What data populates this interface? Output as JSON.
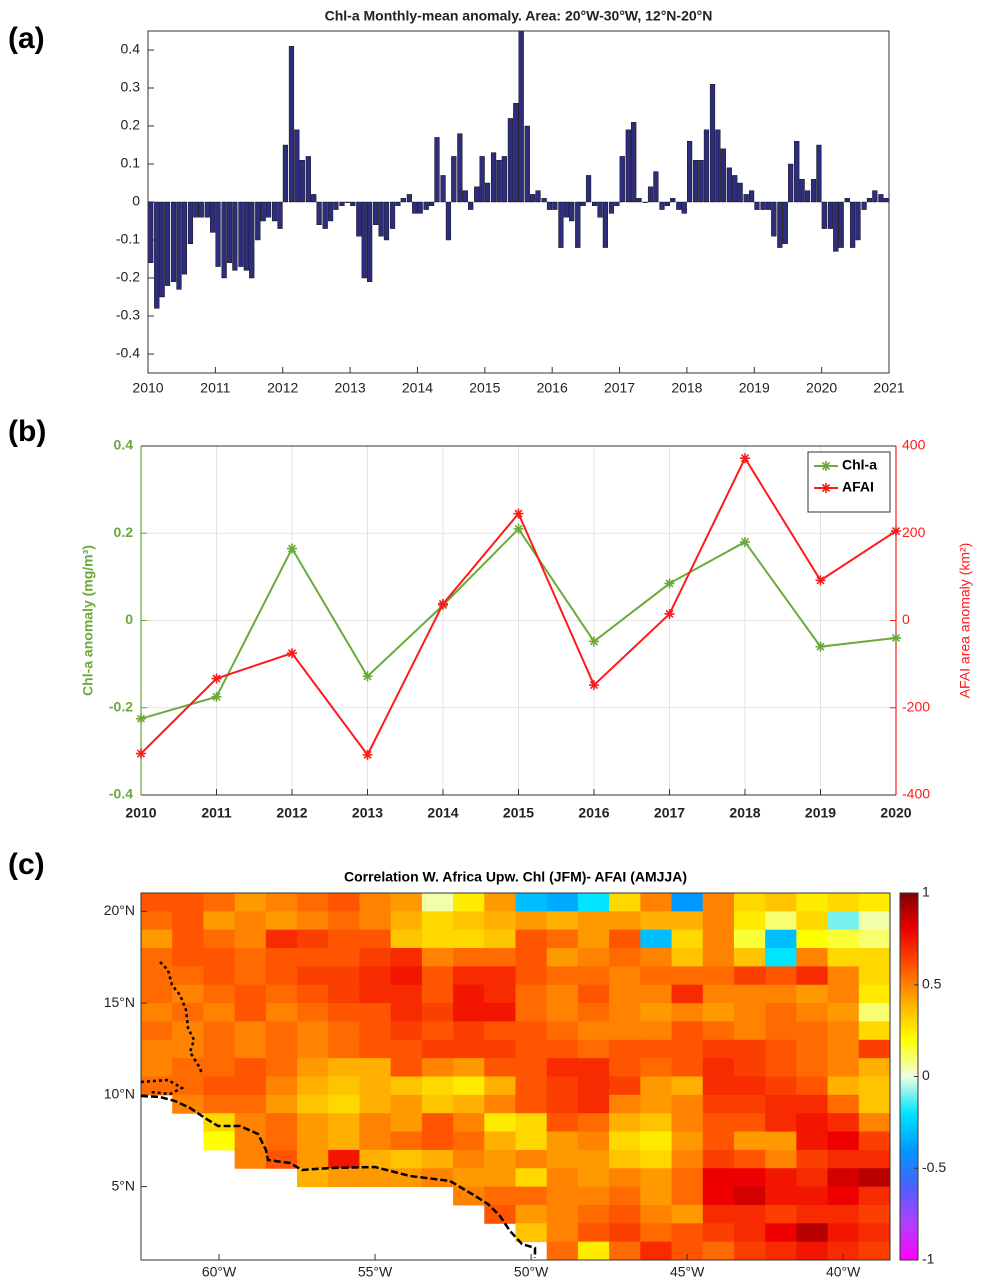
{
  "chart_data": [
    {
      "panel": "(a)",
      "type": "bar",
      "title": "Chl-a Monthly-mean anomaly. Area: 20°W-30°W, 12°N-20°N",
      "color": "#2e2d7a",
      "xlim": [
        2010,
        2021
      ],
      "xticks": [
        2010,
        2011,
        2012,
        2013,
        2014,
        2015,
        2016,
        2017,
        2018,
        2019,
        2020,
        2021
      ],
      "ylim": [
        -0.45,
        0.45
      ],
      "yticks": [
        -0.4,
        -0.3,
        -0.2,
        -0.1,
        0,
        0.1,
        0.2,
        0.3,
        0.4
      ],
      "grid": false,
      "x": [
        2010.04,
        2010.13,
        2010.21,
        2010.29,
        2010.38,
        2010.46,
        2010.54,
        2010.63,
        2010.71,
        2010.79,
        2010.88,
        2010.96,
        2011.04,
        2011.13,
        2011.21,
        2011.29,
        2011.38,
        2011.46,
        2011.54,
        2011.63,
        2011.71,
        2011.79,
        2011.88,
        2011.96,
        2012.04,
        2012.13,
        2012.21,
        2012.29,
        2012.38,
        2012.46,
        2012.54,
        2012.63,
        2012.71,
        2012.79,
        2012.88,
        2012.96,
        2013.04,
        2013.13,
        2013.21,
        2013.29,
        2013.38,
        2013.46,
        2013.54,
        2013.63,
        2013.71,
        2013.79,
        2013.88,
        2013.96,
        2014.04,
        2014.13,
        2014.21,
        2014.29,
        2014.38,
        2014.46,
        2014.54,
        2014.63,
        2014.71,
        2014.79,
        2014.88,
        2014.96,
        2015.04,
        2015.13,
        2015.21,
        2015.29,
        2015.38,
        2015.46,
        2015.54,
        2015.63,
        2015.71,
        2015.79,
        2015.88,
        2015.96,
        2016.04,
        2016.13,
        2016.21,
        2016.29,
        2016.38,
        2016.46,
        2016.54,
        2016.63,
        2016.71,
        2016.79,
        2016.88,
        2016.96,
        2017.04,
        2017.13,
        2017.21,
        2017.29,
        2017.38,
        2017.46,
        2017.54,
        2017.63,
        2017.71,
        2017.79,
        2017.88,
        2017.96,
        2018.04,
        2018.13,
        2018.21,
        2018.29,
        2018.38,
        2018.46,
        2018.54,
        2018.63,
        2018.71,
        2018.79,
        2018.88,
        2018.96,
        2019.04,
        2019.13,
        2019.21,
        2019.29,
        2019.38,
        2019.46,
        2019.54,
        2019.63,
        2019.71,
        2019.79,
        2019.88,
        2019.96,
        2020.04,
        2020.13,
        2020.21,
        2020.29,
        2020.38,
        2020.46,
        2020.54,
        2020.63,
        2020.71,
        2020.79,
        2020.88,
        2020.96
      ],
      "values": [
        -0.16,
        -0.28,
        -0.25,
        -0.22,
        -0.21,
        -0.23,
        -0.19,
        -0.11,
        -0.04,
        -0.04,
        -0.04,
        -0.08,
        -0.17,
        -0.2,
        -0.16,
        -0.18,
        -0.17,
        -0.18,
        -0.2,
        -0.1,
        -0.05,
        -0.04,
        -0.05,
        -0.07,
        0.15,
        0.41,
        0.19,
        0.11,
        0.12,
        0.02,
        -0.06,
        -0.07,
        -0.05,
        -0.02,
        -0.01,
        0.0,
        -0.01,
        -0.09,
        -0.2,
        -0.21,
        -0.06,
        -0.09,
        -0.1,
        -0.07,
        -0.01,
        0.01,
        0.02,
        -0.03,
        -0.03,
        -0.02,
        -0.01,
        0.17,
        0.07,
        -0.1,
        0.12,
        0.18,
        0.03,
        -0.02,
        0.04,
        0.12,
        0.05,
        0.13,
        0.11,
        0.12,
        0.22,
        0.26,
        0.45,
        0.2,
        0.02,
        0.03,
        0.01,
        -0.02,
        -0.02,
        -0.12,
        -0.04,
        -0.05,
        -0.12,
        -0.01,
        0.07,
        -0.01,
        -0.04,
        -0.12,
        -0.03,
        -0.01,
        0.12,
        0.19,
        0.21,
        0.01,
        0.0,
        0.04,
        0.08,
        -0.02,
        -0.01,
        0.01,
        -0.02,
        -0.03,
        0.16,
        0.11,
        0.11,
        0.19,
        0.31,
        0.19,
        0.14,
        0.09,
        0.07,
        0.05,
        0.02,
        0.03,
        -0.02,
        -0.02,
        -0.02,
        -0.09,
        -0.12,
        -0.11,
        0.1,
        0.16,
        0.06,
        0.03,
        0.06,
        0.15,
        -0.07,
        -0.07,
        -0.13,
        -0.12,
        0.01,
        -0.12,
        -0.1,
        -0.02,
        0.01,
        0.03,
        0.02,
        0.01
      ]
    },
    {
      "panel": "(b)",
      "type": "line",
      "ylabel": "Chl-a anomaly (mg/m³)",
      "y2label": "AFAI area anomaly (km²)",
      "xlim": [
        2010,
        2020
      ],
      "xticks": [
        2010,
        2011,
        2012,
        2013,
        2014,
        2015,
        2016,
        2017,
        2018,
        2019,
        2020
      ],
      "ylim": [
        -0.4,
        0.4
      ],
      "yticks": [
        -0.4,
        -0.2,
        0,
        0.2,
        0.4
      ],
      "y2lim": [
        -400,
        400
      ],
      "y2ticks": [
        -400,
        -200,
        0,
        200,
        400
      ],
      "grid": true,
      "legend": "northeast",
      "x": [
        2010,
        2011,
        2012,
        2013,
        2014,
        2015,
        2016,
        2017,
        2018,
        2019,
        2020
      ],
      "series": [
        {
          "name": "Chl-a",
          "color": "#6aaa3a",
          "values": [
            -0.225,
            -0.175,
            0.165,
            -0.128,
            0.035,
            0.21,
            -0.048,
            0.085,
            0.18,
            -0.06,
            -0.04
          ]
        },
        {
          "name": "AFAI",
          "color": "#ff1a1a",
          "axis": "y2",
          "values": [
            -305,
            -133,
            -75,
            -308,
            38,
            245,
            -148,
            15,
            372,
            92,
            205
          ]
        }
      ]
    },
    {
      "panel": "(c)",
      "type": "heatmap",
      "title": "Correlation W. Africa Upw. Chl (JFM)- AFAI (AMJJA)",
      "xlim": [
        -62.5,
        -38.5
      ],
      "ylim": [
        1,
        21
      ],
      "xticks": [
        {
          "value": -60,
          "label": "60°W"
        },
        {
          "value": -55,
          "label": "55°W"
        },
        {
          "value": -50,
          "label": "50°W"
        },
        {
          "value": -45,
          "label": "45°W"
        },
        {
          "value": -40,
          "label": "40°W"
        }
      ],
      "yticks": [
        {
          "value": 20,
          "label": "20°N"
        },
        {
          "value": 15,
          "label": "15°N"
        },
        {
          "value": 10,
          "label": "10°N"
        },
        {
          "value": 5,
          "label": "5°N"
        }
      ],
      "clim": [
        -1,
        1
      ],
      "cticks": [
        1,
        0.5,
        0,
        -0.5,
        -1
      ],
      "colormap": [
        "#ff00ff",
        "#b040ff",
        "#4a60ff",
        "#0098ff",
        "#00e4ff",
        "#eeffe0",
        "#ffff00",
        "#ffb000",
        "#ff5400",
        "#ee0000",
        "#800000"
      ],
      "x": [
        -62,
        -61,
        -60,
        -59,
        -58,
        -57,
        -56,
        -55,
        -54,
        -53,
        -52,
        -51,
        -50,
        -49,
        -48,
        -47,
        -46,
        -45,
        -44,
        -43,
        -42,
        -41,
        -40,
        -39
      ],
      "y": [
        20.5,
        19.5,
        18.5,
        17.5,
        16.5,
        15.5,
        14.5,
        13.5,
        12.5,
        11.5,
        10.5,
        9.5,
        8.5,
        7.5,
        6.5,
        5.5,
        4.5,
        3.5,
        2.5,
        1.5
      ],
      "values": [
        [
          0.6,
          0.6,
          0.55,
          0.45,
          0.5,
          0.55,
          0.6,
          0.5,
          0.45,
          0.05,
          0.25,
          0.45,
          -0.3,
          -0.35,
          -0.2,
          0.3,
          0.5,
          -0.4,
          0.5,
          0.3,
          0.35,
          0.25,
          0.3,
          0.25
        ],
        [
          0.55,
          0.6,
          0.45,
          0.5,
          0.45,
          0.5,
          0.55,
          0.5,
          0.4,
          0.3,
          0.35,
          0.4,
          0.45,
          0.4,
          0.45,
          0.45,
          0.4,
          0.4,
          0.5,
          0.25,
          0.1,
          0.3,
          -0.1,
          0.05
        ],
        [
          0.45,
          0.6,
          0.55,
          0.5,
          0.7,
          0.65,
          0.6,
          0.6,
          0.35,
          0.3,
          0.3,
          0.35,
          0.6,
          0.55,
          0.45,
          0.6,
          -0.3,
          0.3,
          0.5,
          0.15,
          -0.3,
          0.2,
          0.15,
          0.1
        ],
        [
          0.55,
          0.6,
          0.6,
          0.55,
          0.6,
          0.6,
          0.6,
          0.65,
          0.7,
          0.5,
          0.55,
          0.55,
          0.6,
          0.45,
          0.5,
          0.55,
          0.5,
          0.35,
          0.5,
          0.35,
          -0.2,
          0.5,
          0.3,
          0.3
        ],
        [
          0.55,
          0.55,
          0.6,
          0.55,
          0.6,
          0.65,
          0.65,
          0.7,
          0.75,
          0.6,
          0.7,
          0.7,
          0.6,
          0.55,
          0.55,
          0.5,
          0.55,
          0.55,
          0.55,
          0.65,
          0.6,
          0.7,
          0.5,
          0.3
        ],
        [
          0.55,
          0.5,
          0.55,
          0.6,
          0.55,
          0.6,
          0.65,
          0.7,
          0.7,
          0.6,
          0.75,
          0.7,
          0.55,
          0.5,
          0.6,
          0.5,
          0.5,
          0.7,
          0.5,
          0.5,
          0.5,
          0.45,
          0.5,
          0.25
        ],
        [
          0.5,
          0.55,
          0.5,
          0.6,
          0.5,
          0.55,
          0.6,
          0.6,
          0.7,
          0.65,
          0.75,
          0.75,
          0.55,
          0.5,
          0.55,
          0.5,
          0.45,
          0.5,
          0.45,
          0.5,
          0.55,
          0.5,
          0.45,
          0.1
        ],
        [
          0.55,
          0.5,
          0.55,
          0.5,
          0.55,
          0.5,
          0.55,
          0.6,
          0.65,
          0.6,
          0.65,
          0.6,
          0.6,
          0.55,
          0.5,
          0.5,
          0.5,
          0.6,
          0.55,
          0.5,
          0.55,
          0.55,
          0.5,
          0.3
        ],
        [
          0.5,
          0.5,
          0.55,
          0.5,
          0.55,
          0.5,
          0.55,
          0.6,
          0.6,
          0.65,
          0.65,
          0.65,
          0.6,
          0.6,
          0.55,
          0.6,
          0.6,
          0.6,
          0.65,
          0.65,
          0.6,
          0.55,
          0.5,
          0.65
        ],
        [
          0.5,
          0.55,
          0.55,
          0.6,
          0.55,
          0.45,
          0.4,
          0.4,
          0.6,
          0.5,
          0.45,
          0.6,
          0.6,
          0.7,
          0.7,
          0.6,
          0.55,
          0.6,
          0.7,
          0.65,
          0.6,
          0.55,
          0.5,
          0.4
        ],
        [
          0.55,
          0.55,
          0.6,
          0.6,
          0.5,
          0.4,
          0.35,
          0.4,
          0.35,
          0.3,
          0.25,
          0.4,
          0.6,
          0.65,
          0.7,
          0.65,
          0.45,
          0.4,
          0.7,
          0.7,
          0.65,
          0.6,
          0.4,
          0.35
        ],
        [
          null,
          0.5,
          0.55,
          0.55,
          0.45,
          0.35,
          0.3,
          0.4,
          0.45,
          0.35,
          0.4,
          0.5,
          0.6,
          0.65,
          0.7,
          0.5,
          0.45,
          0.5,
          0.65,
          0.65,
          0.7,
          0.7,
          0.55,
          0.35
        ],
        [
          null,
          null,
          0.3,
          0.5,
          0.55,
          0.45,
          0.4,
          0.5,
          0.45,
          0.6,
          0.5,
          0.25,
          0.3,
          0.6,
          0.55,
          0.4,
          0.35,
          0.5,
          0.6,
          0.6,
          0.7,
          0.75,
          0.7,
          0.5
        ],
        [
          null,
          null,
          0.2,
          0.5,
          0.55,
          0.45,
          0.4,
          0.5,
          0.55,
          0.6,
          0.55,
          0.4,
          0.3,
          0.45,
          0.5,
          0.3,
          0.25,
          0.45,
          0.6,
          0.45,
          0.45,
          0.75,
          0.8,
          0.65
        ],
        [
          null,
          null,
          null,
          0.5,
          0.6,
          0.45,
          0.75,
          0.4,
          0.35,
          0.4,
          0.5,
          0.45,
          0.5,
          0.45,
          0.45,
          0.35,
          0.3,
          0.5,
          0.65,
          0.6,
          0.5,
          0.65,
          0.7,
          0.7
        ],
        [
          null,
          null,
          null,
          null,
          null,
          0.4,
          0.45,
          0.45,
          0.45,
          0.5,
          0.45,
          0.45,
          0.3,
          0.5,
          0.45,
          0.5,
          0.45,
          0.55,
          0.8,
          0.8,
          0.75,
          0.7,
          0.85,
          0.9
        ],
        [
          null,
          null,
          null,
          null,
          null,
          null,
          null,
          null,
          null,
          null,
          0.5,
          0.55,
          0.55,
          0.5,
          0.5,
          0.55,
          0.45,
          0.55,
          0.8,
          0.85,
          0.75,
          0.75,
          0.8,
          0.7
        ],
        [
          null,
          null,
          null,
          null,
          null,
          null,
          null,
          null,
          null,
          null,
          null,
          0.6,
          0.45,
          0.5,
          0.55,
          0.6,
          0.5,
          0.45,
          0.7,
          0.7,
          0.65,
          0.7,
          0.7,
          0.65
        ],
        [
          null,
          null,
          null,
          null,
          null,
          null,
          null,
          null,
          null,
          null,
          null,
          null,
          0.35,
          0.5,
          0.6,
          0.65,
          0.55,
          0.6,
          0.65,
          0.7,
          0.8,
          0.9,
          0.75,
          0.7
        ],
        [
          null,
          null,
          null,
          null,
          null,
          null,
          null,
          null,
          null,
          null,
          null,
          null,
          null,
          0.55,
          0.25,
          0.55,
          0.7,
          0.6,
          0.55,
          0.65,
          0.7,
          0.75,
          0.7,
          0.65
        ]
      ]
    }
  ]
}
